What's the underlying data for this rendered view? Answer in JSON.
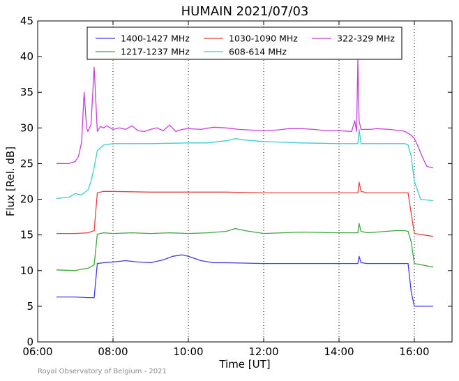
{
  "chart_data": {
    "type": "line",
    "title": "HUMAIN 2021/07/03",
    "xlabel": "Time [UT]",
    "ylabel": "Flux [Rel. dB]",
    "xlim": [
      "06:00",
      "17:00"
    ],
    "ylim": [
      0,
      45
    ],
    "x_ticks": [
      "06:00",
      "08:00",
      "10:00",
      "12:00",
      "14:00",
      "16:00"
    ],
    "y_ticks": [
      0,
      5,
      10,
      15,
      20,
      25,
      30,
      35,
      40,
      45
    ],
    "vertical_dotted_lines": [
      "08:00",
      "10:00",
      "12:00",
      "14:00",
      "16:00"
    ],
    "legend_placement": "top",
    "series": [
      {
        "name": "1400-1427 MHz",
        "color": "#3c3ce6",
        "x": [
          "06:30",
          "07:00",
          "07:20",
          "07:30",
          "07:35",
          "07:45",
          "08:00",
          "08:20",
          "08:40",
          "09:00",
          "09:20",
          "09:35",
          "09:50",
          "10:00",
          "10:20",
          "10:40",
          "11:00",
          "12:00",
          "13:00",
          "14:00",
          "14:30",
          "14:32",
          "14:35",
          "14:45",
          "15:00",
          "15:30",
          "15:45",
          "15:50",
          "15:55",
          "16:00",
          "16:30"
        ],
        "y": [
          6.3,
          6.3,
          6.2,
          6.2,
          11.0,
          11.1,
          11.2,
          11.4,
          11.2,
          11.1,
          11.5,
          12.0,
          12.2,
          12.0,
          11.4,
          11.1,
          11.1,
          11.0,
          11.0,
          11.0,
          11.0,
          12.0,
          11.1,
          11.0,
          11.0,
          11.0,
          11.0,
          11.0,
          7.0,
          5.0,
          5.0
        ]
      },
      {
        "name": "1217-1237 MHz",
        "color": "#3ea53e",
        "x": [
          "06:30",
          "07:00",
          "07:10",
          "07:20",
          "07:30",
          "07:35",
          "07:45",
          "08:00",
          "08:30",
          "09:00",
          "09:30",
          "10:00",
          "10:30",
          "11:00",
          "11:15",
          "11:30",
          "12:00",
          "13:00",
          "14:00",
          "14:30",
          "14:32",
          "14:35",
          "14:45",
          "15:00",
          "15:30",
          "15:45",
          "15:50",
          "15:55",
          "16:00",
          "16:30"
        ],
        "y": [
          10.1,
          10.0,
          10.2,
          10.3,
          10.8,
          15.1,
          15.3,
          15.2,
          15.3,
          15.2,
          15.3,
          15.2,
          15.3,
          15.5,
          15.9,
          15.6,
          15.2,
          15.4,
          15.3,
          15.3,
          16.6,
          15.5,
          15.3,
          15.4,
          15.6,
          15.6,
          15.5,
          14.0,
          11.0,
          10.5
        ]
      },
      {
        "name": "1030-1090 MHz",
        "color": "#e64040",
        "x": [
          "06:30",
          "07:00",
          "07:20",
          "07:30",
          "07:35",
          "07:45",
          "08:00",
          "09:00",
          "10:00",
          "11:00",
          "12:00",
          "13:00",
          "14:00",
          "14:30",
          "14:32",
          "14:35",
          "14:45",
          "15:00",
          "15:30",
          "15:45",
          "15:50",
          "15:55",
          "16:00",
          "16:30"
        ],
        "y": [
          15.2,
          15.2,
          15.3,
          15.6,
          20.9,
          21.1,
          21.1,
          21.0,
          21.0,
          21.0,
          20.9,
          20.9,
          20.9,
          20.9,
          22.4,
          21.1,
          20.9,
          20.9,
          20.9,
          20.9,
          20.9,
          18.0,
          15.2,
          14.8
        ]
      },
      {
        "name": "608-614 MHz",
        "color": "#3ecccc",
        "x": [
          "06:30",
          "06:50",
          "07:00",
          "07:10",
          "07:20",
          "07:25",
          "07:30",
          "07:35",
          "07:45",
          "08:00",
          "09:00",
          "10:00",
          "10:30",
          "11:00",
          "11:15",
          "11:30",
          "12:00",
          "13:00",
          "14:00",
          "14:30",
          "14:32",
          "14:35",
          "14:45",
          "15:00",
          "15:30",
          "15:45",
          "15:50",
          "15:55",
          "16:00",
          "16:10",
          "16:30"
        ],
        "y": [
          20.1,
          20.3,
          20.8,
          20.6,
          21.3,
          22.5,
          24.5,
          26.8,
          27.6,
          27.8,
          27.8,
          27.9,
          27.9,
          28.2,
          28.5,
          28.3,
          28.1,
          27.9,
          27.8,
          27.8,
          29.8,
          27.8,
          27.8,
          27.8,
          27.8,
          27.8,
          27.6,
          26.0,
          22.5,
          20.0,
          19.8
        ]
      },
      {
        "name": "322-329 MHz",
        "color": "#c63fd6",
        "x": [
          "06:30",
          "06:50",
          "07:00",
          "07:05",
          "07:10",
          "07:14",
          "07:18",
          "07:20",
          "07:25",
          "07:30",
          "07:35",
          "07:40",
          "07:45",
          "07:50",
          "08:00",
          "08:10",
          "08:20",
          "08:30",
          "08:40",
          "08:50",
          "09:00",
          "09:10",
          "09:20",
          "09:30",
          "09:40",
          "09:50",
          "10:00",
          "10:20",
          "10:40",
          "11:00",
          "11:20",
          "11:40",
          "12:00",
          "12:20",
          "12:40",
          "13:00",
          "13:20",
          "13:40",
          "14:00",
          "14:20",
          "14:25",
          "14:28",
          "14:30",
          "14:32",
          "14:35",
          "14:40",
          "14:50",
          "15:00",
          "15:20",
          "15:40",
          "15:45",
          "15:55",
          "16:00",
          "16:05",
          "16:10",
          "16:15",
          "16:20",
          "16:30"
        ],
        "y": [
          25.0,
          25.0,
          25.3,
          26.0,
          28.0,
          35.0,
          30.0,
          29.5,
          30.5,
          38.5,
          29.5,
          30.2,
          30.0,
          30.3,
          29.8,
          30.0,
          29.8,
          30.3,
          29.6,
          29.5,
          29.8,
          30.0,
          29.6,
          30.4,
          29.5,
          29.8,
          29.9,
          29.8,
          30.1,
          30.0,
          29.8,
          29.7,
          29.6,
          29.7,
          29.9,
          29.9,
          29.8,
          29.6,
          29.6,
          29.5,
          31.0,
          29.5,
          39.5,
          31.0,
          29.8,
          29.8,
          29.8,
          29.9,
          29.8,
          29.6,
          29.5,
          29.0,
          28.5,
          27.6,
          26.5,
          25.5,
          24.6,
          24.4
        ]
      }
    ]
  },
  "footer": "Royal Observatory of Belgium - 2021"
}
